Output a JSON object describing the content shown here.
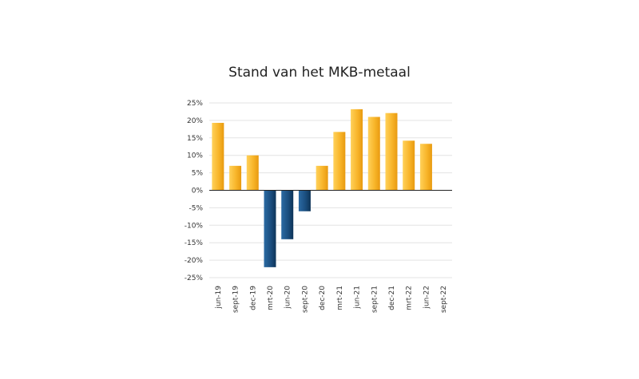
{
  "chart_data": {
    "type": "bar",
    "title": "Stand van het MKB-metaal",
    "categories": [
      "jun-19",
      "sept-19",
      "dec-19",
      "mrt-20",
      "jun-20",
      "sept-20",
      "dec-20",
      "mrt-21",
      "jun-21",
      "sept-21",
      "dec-21",
      "mrt-22",
      "jun-22",
      "sept-22"
    ],
    "values": [
      19.3,
      7.0,
      10.0,
      -22.0,
      -14.0,
      -6.0,
      7.0,
      16.7,
      23.2,
      21.0,
      22.1,
      14.2,
      13.3,
      0
    ],
    "ylim": [
      -25,
      25
    ],
    "yticks": [
      25,
      20,
      15,
      10,
      5,
      0,
      -5,
      -10,
      -15,
      -20,
      -25
    ],
    "ytick_labels": [
      "25%",
      "20%",
      "15%",
      "10%",
      "5%",
      "0%",
      "-5%",
      "-10%",
      "-15%",
      "-20%",
      "-25%"
    ],
    "xlabel": "",
    "ylabel": "",
    "grid": true,
    "legend": "none",
    "colors": {
      "positive": "#f6b52a",
      "negative": "#1b4f80",
      "grid": "#e3e3e3",
      "zero_line": "#222222"
    }
  }
}
